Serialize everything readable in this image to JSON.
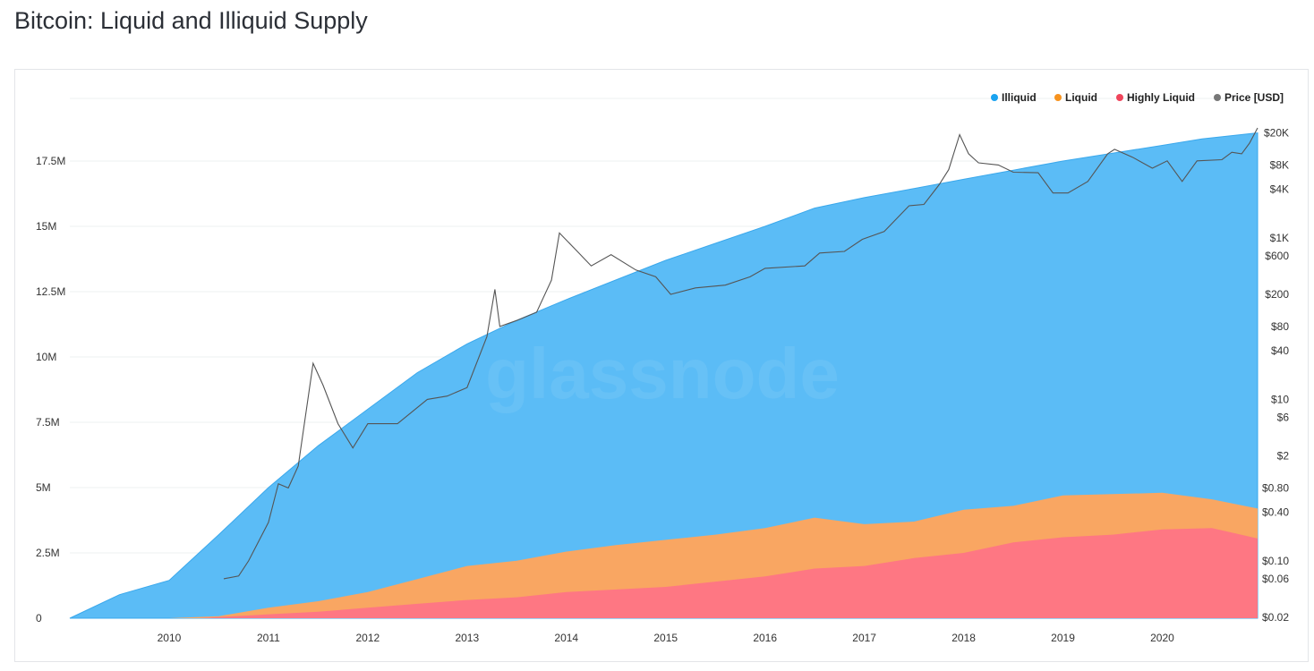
{
  "title": "Bitcoin: Liquid and Illiquid Supply",
  "watermark": "glassnode",
  "chart_data": {
    "type": "area",
    "title": "Bitcoin: Liquid and Illiquid Supply",
    "x_ticks": [
      "2010",
      "2011",
      "2012",
      "2013",
      "2014",
      "2015",
      "2016",
      "2017",
      "2018",
      "2019",
      "2020"
    ],
    "xlim": [
      2009.0,
      2020.96
    ],
    "y_left": {
      "ticks": [
        0,
        2500000,
        5000000,
        7500000,
        10000000,
        12500000,
        15000000,
        17500000
      ],
      "tick_labels": [
        "0",
        "2.5M",
        "5M",
        "7.5M",
        "10M",
        "12.5M",
        "15M",
        "17.5M"
      ],
      "ylim": [
        0,
        18700000
      ]
    },
    "y_right": {
      "scale": "log",
      "ticks": [
        20000,
        8000,
        4000,
        1000,
        600,
        200,
        80,
        40,
        10,
        6,
        2,
        0.8,
        0.4,
        0.1,
        0.06,
        0.02
      ],
      "tick_labels": [
        "$20K",
        "$8K",
        "$4K",
        "$1K",
        "$600",
        "$200",
        "$80",
        "$40",
        "$10",
        "$6",
        "$2",
        "$0.80",
        "$0.40",
        "$0.10",
        "$0.06",
        "$0.02"
      ],
      "ylim": [
        0.02,
        20000
      ]
    },
    "grid": true,
    "legend_position": "top-right",
    "stacked": true,
    "series": [
      {
        "name": "Illiquid",
        "color": "#5bbcf6",
        "total_top": [
          [
            2009.0,
            0
          ],
          [
            2009.5,
            900000
          ],
          [
            2010.0,
            1450000
          ],
          [
            2010.5,
            3200000
          ],
          [
            2011.0,
            5000000
          ],
          [
            2011.5,
            6600000
          ],
          [
            2012.0,
            8000000
          ],
          [
            2012.5,
            9400000
          ],
          [
            2013.0,
            10500000
          ],
          [
            2013.5,
            11400000
          ],
          [
            2014.0,
            12200000
          ],
          [
            2014.5,
            12950000
          ],
          [
            2015.0,
            13700000
          ],
          [
            2015.5,
            14350000
          ],
          [
            2016.0,
            15000000
          ],
          [
            2016.5,
            15700000
          ],
          [
            2017.0,
            16100000
          ],
          [
            2017.5,
            16450000
          ],
          [
            2018.0,
            16800000
          ],
          [
            2018.5,
            17150000
          ],
          [
            2019.0,
            17500000
          ],
          [
            2019.5,
            17800000
          ],
          [
            2020.0,
            18100000
          ],
          [
            2020.4,
            18350000
          ],
          [
            2020.96,
            18580000
          ]
        ]
      },
      {
        "name": "Liquid",
        "color": "#f9a662",
        "total_top": [
          [
            2009.0,
            0
          ],
          [
            2010.0,
            0
          ],
          [
            2010.5,
            80000
          ],
          [
            2011.0,
            400000
          ],
          [
            2011.5,
            650000
          ],
          [
            2012.0,
            1000000
          ],
          [
            2012.5,
            1500000
          ],
          [
            2013.0,
            2000000
          ],
          [
            2013.5,
            2200000
          ],
          [
            2014.0,
            2550000
          ],
          [
            2014.5,
            2800000
          ],
          [
            2015.0,
            3000000
          ],
          [
            2015.5,
            3200000
          ],
          [
            2016.0,
            3450000
          ],
          [
            2016.5,
            3850000
          ],
          [
            2017.0,
            3600000
          ],
          [
            2017.5,
            3700000
          ],
          [
            2018.0,
            4150000
          ],
          [
            2018.5,
            4300000
          ],
          [
            2019.0,
            4700000
          ],
          [
            2019.5,
            4750000
          ],
          [
            2020.0,
            4800000
          ],
          [
            2020.5,
            4550000
          ],
          [
            2020.96,
            4200000
          ]
        ]
      },
      {
        "name": "Highly Liquid",
        "color": "#fe7783",
        "total_top": [
          [
            2009.0,
            0
          ],
          [
            2010.3,
            0
          ],
          [
            2011.0,
            150000
          ],
          [
            2011.5,
            250000
          ],
          [
            2012.0,
            400000
          ],
          [
            2012.5,
            550000
          ],
          [
            2013.0,
            700000
          ],
          [
            2013.5,
            800000
          ],
          [
            2014.0,
            1000000
          ],
          [
            2014.5,
            1100000
          ],
          [
            2015.0,
            1200000
          ],
          [
            2015.5,
            1400000
          ],
          [
            2016.0,
            1600000
          ],
          [
            2016.5,
            1900000
          ],
          [
            2017.0,
            2000000
          ],
          [
            2017.5,
            2300000
          ],
          [
            2018.0,
            2500000
          ],
          [
            2018.5,
            2900000
          ],
          [
            2019.0,
            3100000
          ],
          [
            2019.5,
            3200000
          ],
          [
            2020.0,
            3400000
          ],
          [
            2020.5,
            3450000
          ],
          [
            2020.96,
            3050000
          ]
        ]
      },
      {
        "name": "Price [USD]",
        "color": "#666666",
        "axis": "right",
        "values": [
          [
            2010.55,
            0.06
          ],
          [
            2010.7,
            0.065
          ],
          [
            2010.8,
            0.1
          ],
          [
            2011.0,
            0.3
          ],
          [
            2011.1,
            0.9
          ],
          [
            2011.2,
            0.8
          ],
          [
            2011.3,
            1.5
          ],
          [
            2011.45,
            28
          ],
          [
            2011.55,
            15
          ],
          [
            2011.7,
            5
          ],
          [
            2011.85,
            2.5
          ],
          [
            2012.0,
            5
          ],
          [
            2012.3,
            5
          ],
          [
            2012.6,
            10
          ],
          [
            2012.8,
            11
          ],
          [
            2013.0,
            14
          ],
          [
            2013.2,
            60
          ],
          [
            2013.28,
            230
          ],
          [
            2013.33,
            80
          ],
          [
            2013.5,
            95
          ],
          [
            2013.7,
            120
          ],
          [
            2013.85,
            300
          ],
          [
            2013.93,
            1150
          ],
          [
            2014.1,
            700
          ],
          [
            2014.25,
            450
          ],
          [
            2014.45,
            620
          ],
          [
            2014.7,
            400
          ],
          [
            2014.9,
            330
          ],
          [
            2015.05,
            200
          ],
          [
            2015.3,
            240
          ],
          [
            2015.6,
            260
          ],
          [
            2015.85,
            330
          ],
          [
            2016.0,
            420
          ],
          [
            2016.4,
            450
          ],
          [
            2016.55,
            650
          ],
          [
            2016.8,
            680
          ],
          [
            2016.98,
            960
          ],
          [
            2017.2,
            1200
          ],
          [
            2017.45,
            2500
          ],
          [
            2017.6,
            2600
          ],
          [
            2017.75,
            4500
          ],
          [
            2017.85,
            7000
          ],
          [
            2017.96,
            19000
          ],
          [
            2018.05,
            11000
          ],
          [
            2018.15,
            8500
          ],
          [
            2018.35,
            8000
          ],
          [
            2018.5,
            6500
          ],
          [
            2018.75,
            6400
          ],
          [
            2018.9,
            3600
          ],
          [
            2019.05,
            3600
          ],
          [
            2019.25,
            5000
          ],
          [
            2019.45,
            11000
          ],
          [
            2019.52,
            12500
          ],
          [
            2019.7,
            10000
          ],
          [
            2019.9,
            7300
          ],
          [
            2020.05,
            9000
          ],
          [
            2020.2,
            5000
          ],
          [
            2020.35,
            9000
          ],
          [
            2020.6,
            9300
          ],
          [
            2020.7,
            11500
          ],
          [
            2020.8,
            11000
          ],
          [
            2020.88,
            15000
          ],
          [
            2020.96,
            23000
          ]
        ]
      }
    ]
  }
}
